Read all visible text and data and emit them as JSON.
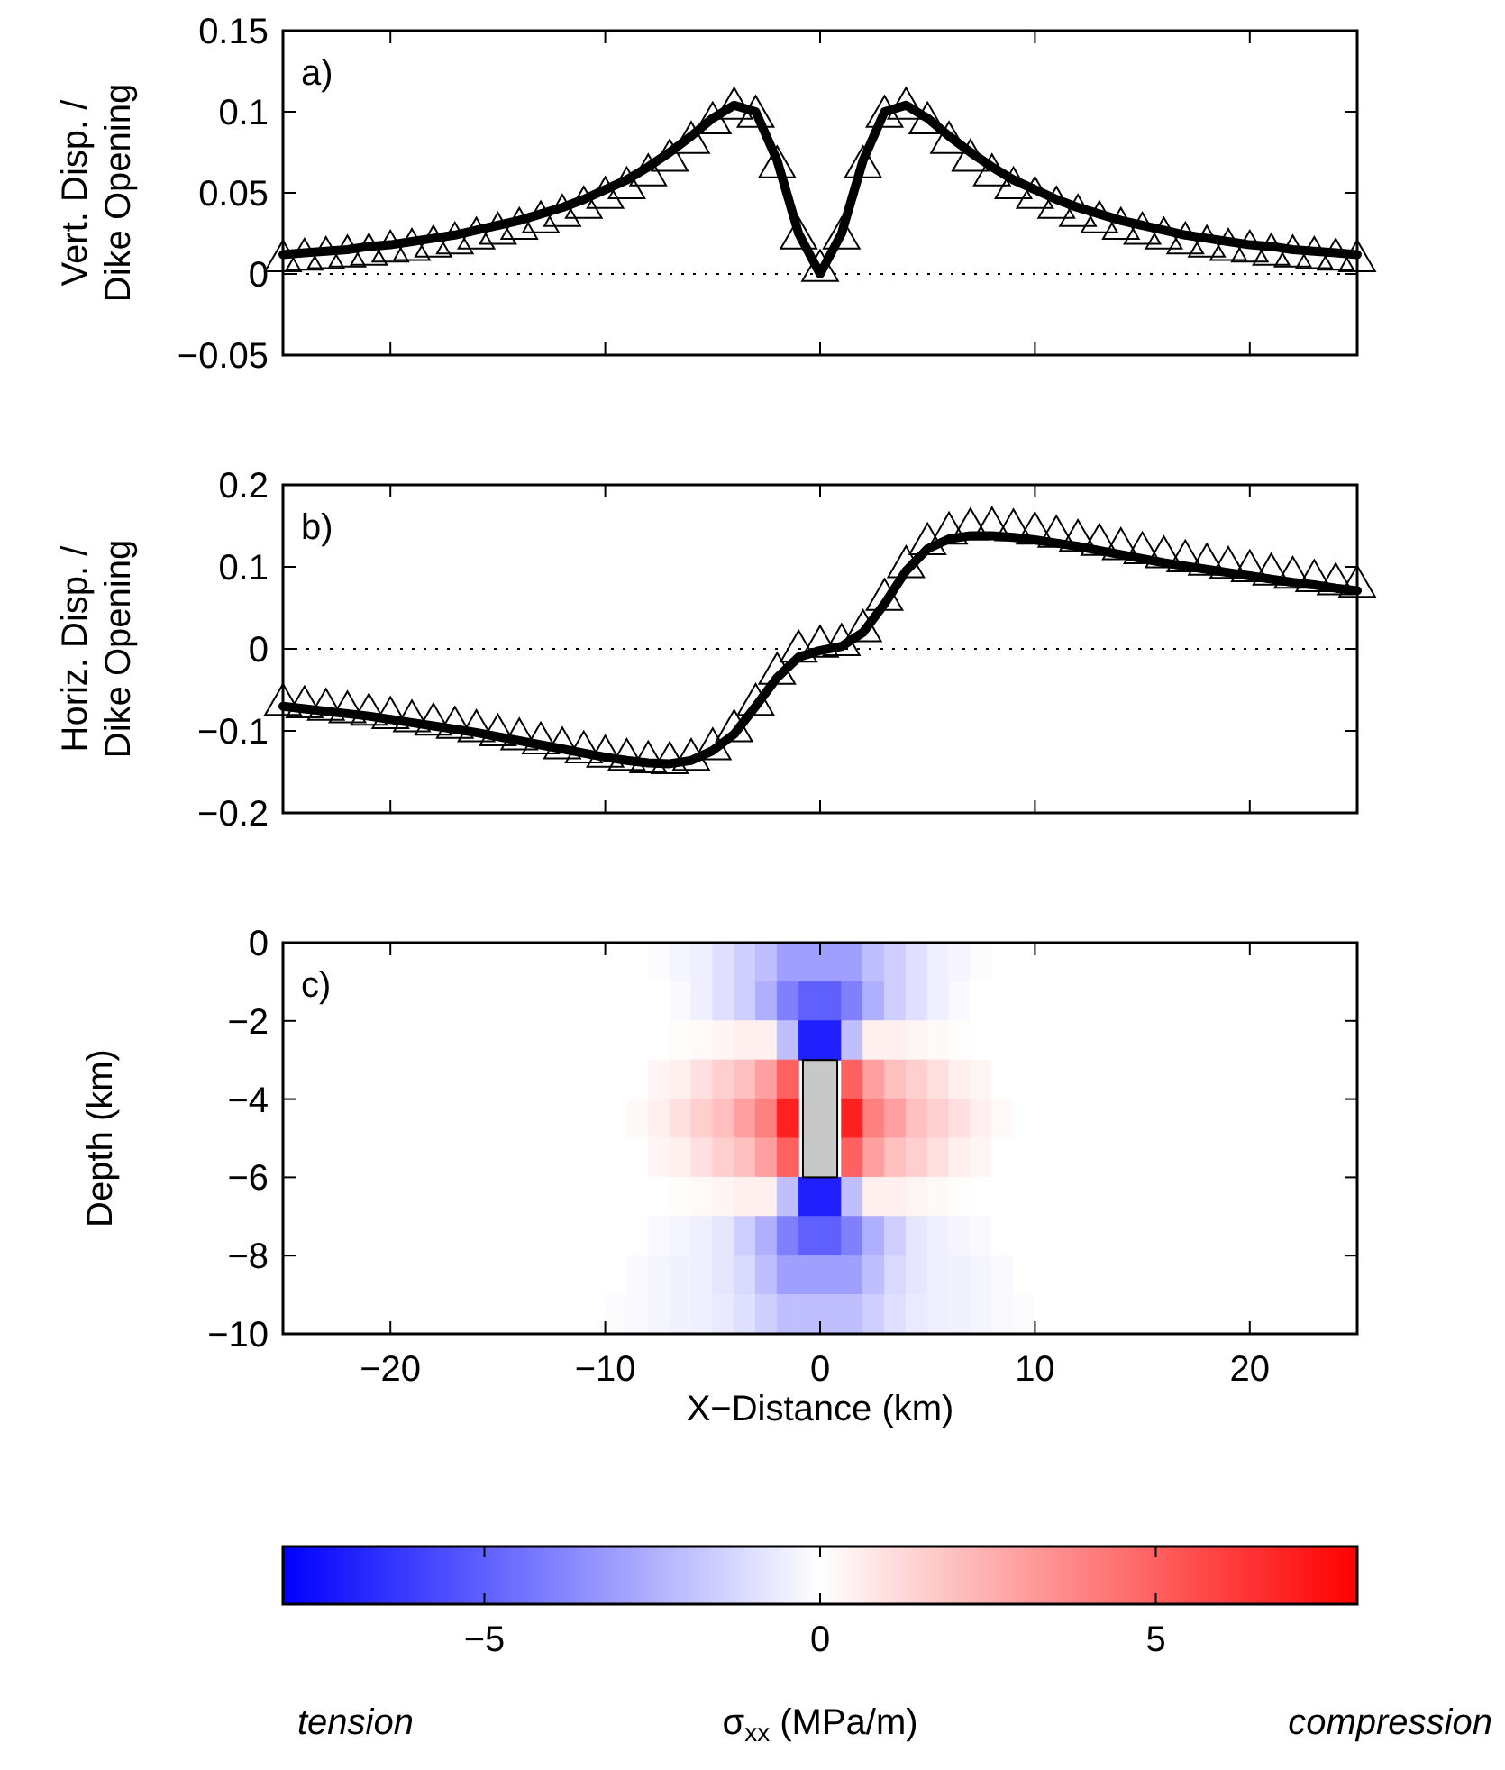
{
  "chart_data": [
    {
      "type": "line",
      "ylabel": "Vert. Disp. /\nDike Opening",
      "annotations": [
        "a)"
      ],
      "x": [
        -25,
        -24,
        -23,
        -22,
        -21,
        -20,
        -19,
        -18,
        -17,
        -16,
        -15,
        -14,
        -13,
        -12,
        -11,
        -10,
        -9,
        -8,
        -7,
        -6,
        -5,
        -4,
        -3,
        -2,
        -1,
        0,
        1,
        2,
        3,
        4,
        5,
        6,
        7,
        8,
        9,
        10,
        11,
        12,
        13,
        14,
        15,
        16,
        17,
        18,
        19,
        20,
        21,
        22,
        23,
        24,
        25
      ],
      "series": [
        {
          "type": "line",
          "color": "#000000",
          "marker": "none",
          "values": [
            0.012,
            0.013,
            0.014,
            0.015,
            0.017,
            0.018,
            0.02,
            0.022,
            0.024,
            0.027,
            0.03,
            0.033,
            0.037,
            0.041,
            0.046,
            0.052,
            0.058,
            0.066,
            0.075,
            0.085,
            0.096,
            0.104,
            0.1,
            0.07,
            0.025,
            0.0,
            0.025,
            0.07,
            0.1,
            0.104,
            0.096,
            0.085,
            0.075,
            0.066,
            0.058,
            0.052,
            0.046,
            0.041,
            0.037,
            0.033,
            0.03,
            0.027,
            0.024,
            0.022,
            0.02,
            0.018,
            0.017,
            0.015,
            0.014,
            0.013,
            0.012
          ]
        },
        {
          "type": "scatter",
          "color": "#000000",
          "marker": "triangle",
          "values": [
            0.008,
            0.009,
            0.01,
            0.011,
            0.012,
            0.014,
            0.015,
            0.017,
            0.019,
            0.022,
            0.025,
            0.028,
            0.032,
            0.036,
            0.041,
            0.047,
            0.053,
            0.061,
            0.07,
            0.081,
            0.093,
            0.102,
            0.097,
            0.066,
            0.022,
            0.002,
            0.022,
            0.066,
            0.097,
            0.102,
            0.093,
            0.081,
            0.07,
            0.061,
            0.053,
            0.047,
            0.041,
            0.036,
            0.032,
            0.028,
            0.025,
            0.022,
            0.019,
            0.017,
            0.015,
            0.014,
            0.012,
            0.011,
            0.01,
            0.009,
            0.008
          ]
        }
      ],
      "xlim": [
        -25,
        25
      ],
      "xticks": [
        -20,
        -10,
        0,
        10,
        20
      ],
      "ylim": [
        -0.05,
        0.15
      ],
      "yticks": [
        {
          "value": -0.05,
          "label": "−0.05"
        },
        0,
        0.05,
        0.1,
        0.15
      ],
      "tick_labels": "y",
      "ref_lines": [
        {
          "axis": "y",
          "value": 0,
          "line_style": "dotted"
        }
      ]
    },
    {
      "type": "line",
      "ylabel": "Horiz. Disp. /\nDike Opening",
      "annotations": [
        "b)"
      ],
      "x": [
        -25,
        -24,
        -23,
        -22,
        -21,
        -20,
        -19,
        -18,
        -17,
        -16,
        -15,
        -14,
        -13,
        -12,
        -11,
        -10,
        -9,
        -8,
        -7,
        -6,
        -5,
        -4,
        -3,
        -2,
        -1,
        0,
        1,
        2,
        3,
        4,
        5,
        6,
        7,
        8,
        9,
        10,
        11,
        12,
        13,
        14,
        15,
        16,
        17,
        18,
        19,
        20,
        21,
        22,
        23,
        24,
        25
      ],
      "series": [
        {
          "type": "line",
          "color": "#000000",
          "marker": "none",
          "values": [
            -0.07,
            -0.073,
            -0.076,
            -0.079,
            -0.082,
            -0.086,
            -0.09,
            -0.094,
            -0.098,
            -0.102,
            -0.107,
            -0.112,
            -0.117,
            -0.122,
            -0.127,
            -0.132,
            -0.136,
            -0.139,
            -0.14,
            -0.136,
            -0.124,
            -0.104,
            -0.07,
            -0.035,
            -0.01,
            -0.002,
            0.003,
            0.02,
            0.055,
            0.095,
            0.122,
            0.134,
            0.138,
            0.138,
            0.136,
            0.133,
            0.129,
            0.125,
            0.12,
            0.115,
            0.11,
            0.105,
            0.101,
            0.097,
            0.093,
            0.089,
            0.085,
            0.081,
            0.078,
            0.074,
            0.071
          ]
        },
        {
          "type": "scatter",
          "color": "#000000",
          "marker": "triangle",
          "values": [
            -0.068,
            -0.071,
            -0.074,
            -0.077,
            -0.08,
            -0.084,
            -0.088,
            -0.092,
            -0.096,
            -0.1,
            -0.105,
            -0.11,
            -0.115,
            -0.121,
            -0.126,
            -0.131,
            -0.135,
            -0.138,
            -0.139,
            -0.135,
            -0.122,
            -0.1,
            -0.068,
            -0.03,
            -0.003,
            0.003,
            0.005,
            0.022,
            0.06,
            0.1,
            0.128,
            0.141,
            0.146,
            0.147,
            0.145,
            0.141,
            0.137,
            0.132,
            0.127,
            0.122,
            0.117,
            0.112,
            0.107,
            0.103,
            0.099,
            0.095,
            0.091,
            0.087,
            0.083,
            0.079,
            0.076
          ]
        }
      ],
      "xlim": [
        -25,
        25
      ],
      "xticks": [
        -20,
        -10,
        0,
        10,
        20
      ],
      "ylim": [
        -0.2,
        0.2
      ],
      "yticks": [
        {
          "value": -0.2,
          "label": "−0.2"
        },
        {
          "value": -0.1,
          "label": "−0.1"
        },
        0,
        0.1,
        0.2
      ],
      "tick_labels": "y",
      "ref_lines": [
        {
          "axis": "y",
          "value": 0,
          "line_style": "dotted"
        }
      ]
    },
    {
      "type": "heatmap",
      "xlabel": "X−Distance (km)",
      "ylabel": "Depth (km)",
      "clabel": "σ$_{xx}$ (MPa/m)",
      "annotations": [
        "c)",
        "tension",
        "compression"
      ],
      "x": [
        -10.5,
        -9.5,
        -8.5,
        -7.5,
        -6.5,
        -5.5,
        -4.5,
        -3.5,
        -2.5,
        -1.5,
        -0.5,
        0.5,
        1.5,
        2.5,
        3.5,
        4.5,
        5.5,
        6.5,
        7.5,
        8.5,
        9.5,
        10.5
      ],
      "cells": [
        [
          0,
          0,
          0,
          -0.1,
          -0.3,
          -0.5,
          -1,
          -1.5,
          -2,
          -3,
          -3,
          -3,
          -3,
          -2,
          -1.5,
          -1,
          -0.5,
          -0.3,
          -0.1,
          0,
          0,
          0
        ],
        [
          0,
          0,
          0,
          0,
          -0.2,
          -0.5,
          -1,
          -1.5,
          -2.5,
          -4,
          -5,
          -5,
          -4,
          -2.5,
          -1.5,
          -1,
          -0.5,
          -0.2,
          0,
          0,
          0,
          0
        ],
        [
          0,
          0,
          0,
          0,
          0.1,
          0.2,
          0.3,
          0.5,
          0.5,
          -2,
          -7,
          -7,
          -2,
          0.5,
          0.5,
          0.3,
          0.2,
          0.1,
          0,
          0,
          0,
          0
        ],
        [
          0,
          0,
          0,
          0.3,
          0.5,
          1,
          1.5,
          2,
          3,
          5,
          null,
          null,
          5,
          3,
          2,
          1.5,
          1,
          0.5,
          0.3,
          0,
          0,
          0
        ],
        [
          0,
          0,
          0.2,
          0.5,
          1,
          1.5,
          2,
          3,
          4,
          7,
          null,
          null,
          7,
          4,
          3,
          2,
          1.5,
          1,
          0.5,
          0.2,
          0,
          0
        ],
        [
          0,
          0,
          0,
          0.3,
          0.5,
          1,
          1.5,
          2,
          3,
          5,
          null,
          null,
          5,
          3,
          2,
          1.5,
          1,
          0.5,
          0.3,
          0,
          0,
          0
        ],
        [
          0,
          0,
          0,
          0,
          0.1,
          0.2,
          0.3,
          0.5,
          0.5,
          -2,
          -7,
          -7,
          -2,
          0.5,
          0.5,
          0.3,
          0.2,
          0.1,
          0,
          0,
          0,
          0
        ],
        [
          0,
          0,
          0,
          -0.2,
          -0.3,
          -0.5,
          -0.8,
          -1.5,
          -2.5,
          -4,
          -5,
          -5,
          -4,
          -2.5,
          -1.5,
          -0.8,
          -0.5,
          -0.3,
          -0.2,
          0,
          0,
          0
        ],
        [
          0,
          0,
          -0.2,
          -0.3,
          -0.4,
          -0.5,
          -0.8,
          -1.2,
          -2,
          -3,
          -3,
          -3,
          -3,
          -2,
          -1.2,
          -0.8,
          -0.5,
          -0.4,
          -0.3,
          -0.2,
          0,
          0
        ],
        [
          0,
          -0.1,
          -0.2,
          -0.3,
          -0.4,
          -0.5,
          -0.7,
          -1,
          -1.5,
          -2,
          -2,
          -2,
          -2,
          -1.5,
          -1,
          -0.7,
          -0.5,
          -0.4,
          -0.3,
          -0.2,
          -0.1,
          0
        ]
      ],
      "clim": [
        -8,
        8
      ],
      "cticks": [
        {
          "value": -5,
          "label": "−5"
        },
        0,
        5
      ],
      "xlim": [
        -25,
        25
      ],
      "xticks": [
        {
          "value": -20,
          "label": "−20"
        },
        {
          "value": -10,
          "label": "−10"
        },
        0,
        10,
        20
      ],
      "ylim": [
        -10,
        0
      ],
      "yticks": [
        {
          "value": -10,
          "label": "−10"
        },
        {
          "value": -8,
          "label": "−8"
        },
        {
          "value": -6,
          "label": "−6"
        },
        {
          "value": -4,
          "label": "−4"
        },
        {
          "value": -2,
          "label": "−2"
        },
        0
      ]
    }
  ]
}
